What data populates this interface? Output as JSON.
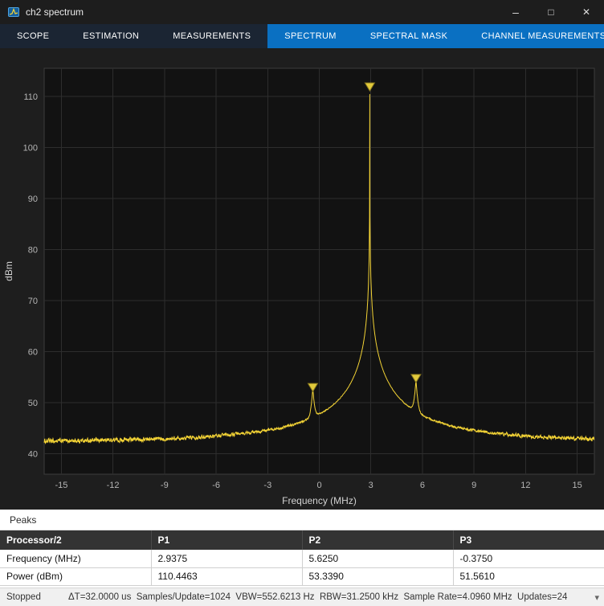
{
  "window": {
    "title": "ch2 spectrum",
    "controls": {
      "minimize_glyph": "–",
      "maximize_glyph": "□",
      "close_glyph": "✕"
    }
  },
  "toolbar": {
    "tabs": [
      {
        "label": "SCOPE"
      },
      {
        "label": "ESTIMATION"
      },
      {
        "label": "MEASUREMENTS"
      },
      {
        "label": "SPECTRUM"
      },
      {
        "label": "SPECTRAL MASK"
      },
      {
        "label": "CHANNEL MEASUREMENTS"
      }
    ],
    "overflow_label": "•••"
  },
  "chart_data": {
    "type": "line",
    "title": "",
    "xlabel": "Frequency (MHz)",
    "ylabel": "dBm",
    "xlim": [
      -16,
      16
    ],
    "ylim": [
      36,
      115.5
    ],
    "xticks": [
      -15,
      -12,
      -9,
      -6,
      -3,
      0,
      3,
      6,
      9,
      12,
      15
    ],
    "yticks": [
      40,
      50,
      60,
      70,
      80,
      90,
      100,
      110
    ],
    "grid": true,
    "legend": "none",
    "line_color": "#f3d335",
    "marker_fill": "#e2ca3c",
    "marker_stroke": "#8a7a1e",
    "noise_floor_dbm": 42.0,
    "skirt_rolloff": 17,
    "skirt_width_mhz": 0.0005,
    "peaks": [
      {
        "label": "P1",
        "freq_mhz": 2.9375,
        "power_dbm": 110.4463
      },
      {
        "label": "P2",
        "freq_mhz": 5.625,
        "power_dbm": 53.339
      },
      {
        "label": "P3",
        "freq_mhz": -0.375,
        "power_dbm": 51.561
      }
    ]
  },
  "peaks_panel": {
    "title": "Peaks",
    "table": {
      "header": [
        "Processor/2",
        "P1",
        "P2",
        "P3"
      ],
      "rows": [
        [
          "Frequency (MHz)",
          "2.9375",
          "5.6250",
          "-0.3750"
        ],
        [
          "Power (dBm)",
          "110.4463",
          "53.3390",
          "51.5610"
        ]
      ]
    }
  },
  "status_bar": {
    "state": "Stopped",
    "stats": "ΔT=32.0000 us  Samples/Update=1024  VBW=552.6213 Hz  RBW=31.2500 kHz  Sample Rate=4.0960 MHz  Updates=24",
    "menu_glyph": "▾"
  }
}
